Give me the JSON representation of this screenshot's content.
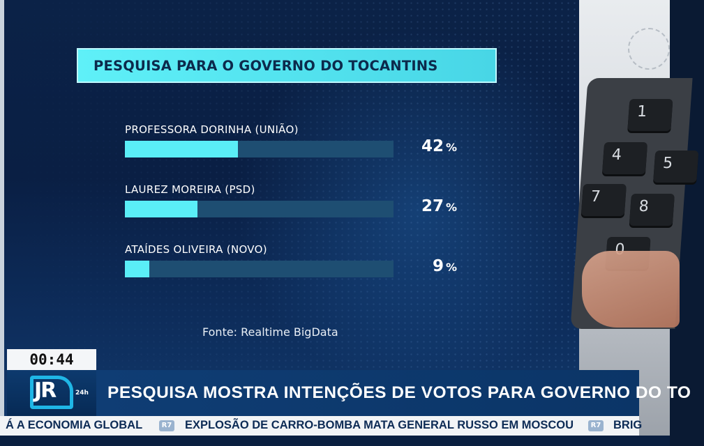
{
  "chart_data": {
    "type": "bar",
    "orientation": "horizontal",
    "title": "PESQUISA PARA O GOVERNO DO TOCANTINS",
    "categories": [
      "PROFESSORA DORINHA (UNIÃO)",
      "LAUREZ MOREIRA (PSD)",
      "ATAÍDES OLIVEIRA (NOVO)"
    ],
    "values": [
      42,
      27,
      9
    ],
    "value_labels": [
      "42",
      "27",
      "9"
    ],
    "unit": "%",
    "xlim": [
      0,
      100
    ],
    "grid": false,
    "source": "Fonte: Realtime BigData",
    "colors": {
      "bar": "#5aeef7",
      "track": "#1e4e72",
      "title_bg": "#55e6f2"
    }
  },
  "broadcast": {
    "clock": "00:44",
    "logo_text": "JR",
    "logo_badge": "24h",
    "headline": "PESQUISA MOSTRA INTENÇÕES DE VOTOS PARA GOVERNO DO TO",
    "ticker": {
      "badge": "R7",
      "items": [
        "Á A ECONOMIA GLOBAL",
        "EXPLOSÃO DE CARRO-BOMBA MATA GENERAL RUSSO EM MOSCOU",
        "BRIG"
      ]
    }
  },
  "photo": {
    "keys": [
      "1",
      "4",
      "5",
      "7",
      "8",
      "0"
    ]
  }
}
